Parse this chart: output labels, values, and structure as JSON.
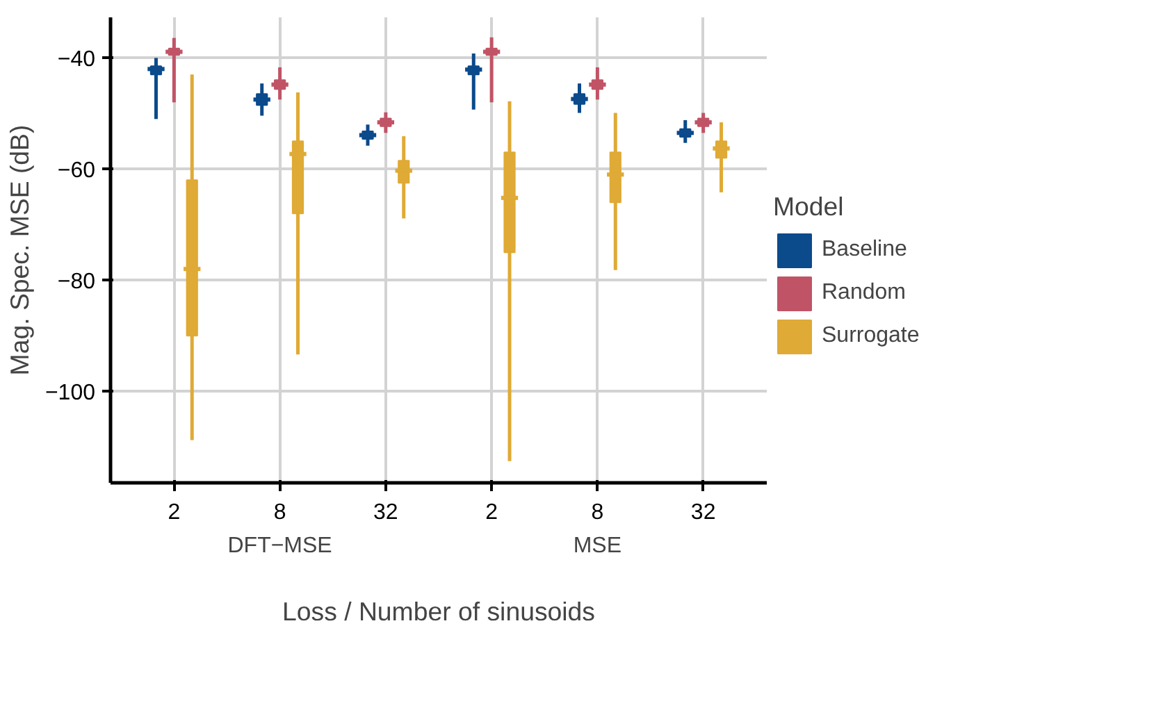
{
  "chart_data": {
    "type": "box",
    "xlabel": "Loss / Number of sinusoids",
    "ylabel": "Mag. Spec. MSE (dB)",
    "legend_title": "Model",
    "categories": [
      "2",
      "8",
      "32",
      "2",
      "8",
      "32"
    ],
    "annotations": [
      "DFT−MSE",
      "MSE"
    ],
    "ylim": [
      -116.5,
      -32.7
    ],
    "yticks": [
      {
        "value": -40,
        "label": "−40"
      },
      {
        "value": -60,
        "label": "−60"
      },
      {
        "value": -80,
        "label": "−80"
      },
      {
        "value": -100,
        "label": "−100"
      }
    ],
    "grid": true,
    "legend": "right",
    "series": [
      {
        "name": "Baseline",
        "color": "#0b4a8b",
        "boxes": [
          {
            "low": -51,
            "q1": -43,
            "median": -42,
            "q3": -41.5,
            "high": -40
          },
          {
            "low": -50.4,
            "q1": -48.5,
            "median": -47.5,
            "q3": -46.5,
            "high": -44.6
          },
          {
            "low": -55.8,
            "q1": -54.6,
            "median": -53.9,
            "q3": -53.2,
            "high": -52
          },
          {
            "low": -49.3,
            "q1": -43,
            "median": -42.1,
            "q3": -41.5,
            "high": -39.2
          },
          {
            "low": -49.9,
            "q1": -48.3,
            "median": -47.4,
            "q3": -46.5,
            "high": -44.6
          },
          {
            "low": -55.3,
            "q1": -54.2,
            "median": -53.5,
            "q3": -52.8,
            "high": -51.2
          }
        ]
      },
      {
        "name": "Random",
        "color": "#c05466",
        "boxes": [
          {
            "low": -48,
            "q1": -39.5,
            "median": -38.9,
            "q3": -38.3,
            "high": -36.4
          },
          {
            "low": -47.5,
            "q1": -45.6,
            "median": -44.8,
            "q3": -44,
            "high": -41.7
          },
          {
            "low": -53.5,
            "q1": -52.3,
            "median": -51.6,
            "q3": -50.9,
            "high": -49.8
          },
          {
            "low": -48,
            "q1": -39.5,
            "median": -38.9,
            "q3": -38.3,
            "high": -36.3
          },
          {
            "low": -47.5,
            "q1": -45.6,
            "median": -44.8,
            "q3": -44,
            "high": -41.7
          },
          {
            "low": -53.5,
            "q1": -52.3,
            "median": -51.6,
            "q3": -50.9,
            "high": -49.9
          }
        ]
      },
      {
        "name": "Surrogate",
        "color": "#dfaa35",
        "boxes": [
          {
            "low": -108.8,
            "q1": -90,
            "median": -78,
            "q3": -62,
            "high": -43
          },
          {
            "low": -93.4,
            "q1": -68,
            "median": -57.3,
            "q3": -55,
            "high": -46.2
          },
          {
            "low": -68.9,
            "q1": -62.5,
            "median": -60.3,
            "q3": -58.5,
            "high": -54.1
          },
          {
            "low": -112.6,
            "q1": -75,
            "median": -65.2,
            "q3": -57,
            "high": -47.8
          },
          {
            "low": -78.2,
            "q1": -66,
            "median": -61,
            "q3": -57,
            "high": -49.9
          },
          {
            "low": -64.2,
            "q1": -58,
            "median": -56.3,
            "q3": -55,
            "high": -51.6
          }
        ]
      }
    ]
  }
}
